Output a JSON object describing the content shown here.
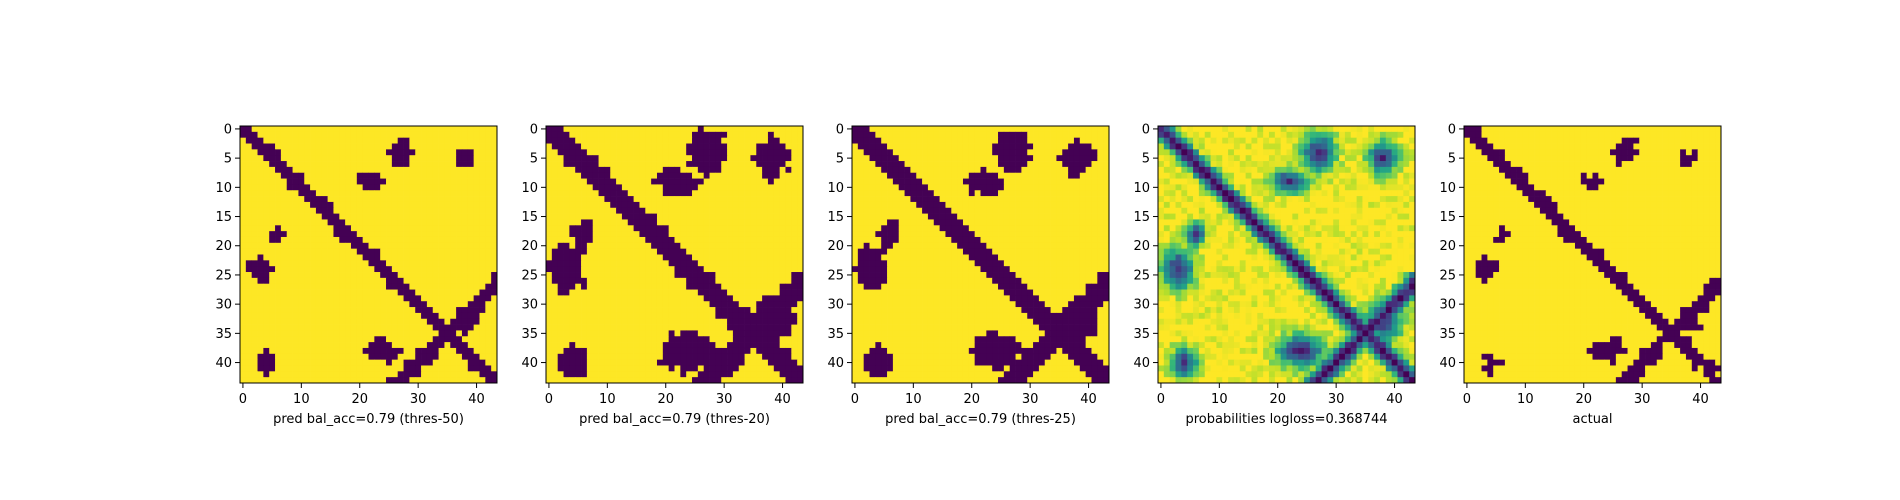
{
  "colors": {
    "low": "#440154",
    "high": "#fde725",
    "frame": "#000000"
  },
  "chart_data": [
    {
      "type": "heatmap",
      "xlabel": "pred bal_acc=0.79 (thres-50)",
      "xticks": [
        0,
        10,
        20,
        30,
        40
      ],
      "yticks": [
        0,
        5,
        10,
        15,
        20,
        25,
        30,
        35,
        40
      ],
      "size": 44,
      "grid": false,
      "colormap": "viridis"
    },
    {
      "type": "heatmap",
      "xlabel": "pred bal_acc=0.79 (thres-20)",
      "xticks": [
        0,
        10,
        20,
        30,
        40
      ],
      "yticks": [
        0,
        5,
        10,
        15,
        20,
        25,
        30,
        35,
        40
      ],
      "size": 44,
      "grid": false,
      "colormap": "viridis"
    },
    {
      "type": "heatmap",
      "xlabel": "pred bal_acc=0.79 (thres-25)",
      "xticks": [
        0,
        10,
        20,
        30,
        40
      ],
      "yticks": [
        0,
        5,
        10,
        15,
        20,
        25,
        30,
        35,
        40
      ],
      "size": 44,
      "grid": false,
      "colormap": "viridis"
    },
    {
      "type": "heatmap",
      "xlabel": "probabilities logloss=0.368744",
      "xticks": [
        0,
        10,
        20,
        30,
        40
      ],
      "yticks": [
        0,
        5,
        10,
        15,
        20,
        25,
        30,
        35,
        40
      ],
      "size": 44,
      "grid": false,
      "colormap": "viridis"
    },
    {
      "type": "heatmap",
      "xlabel": "actual",
      "xticks": [
        0,
        10,
        20,
        30,
        40
      ],
      "yticks": [
        0,
        5,
        10,
        15,
        20,
        25,
        30,
        35,
        40
      ],
      "size": 44,
      "grid": false,
      "colormap": "viridis"
    }
  ]
}
